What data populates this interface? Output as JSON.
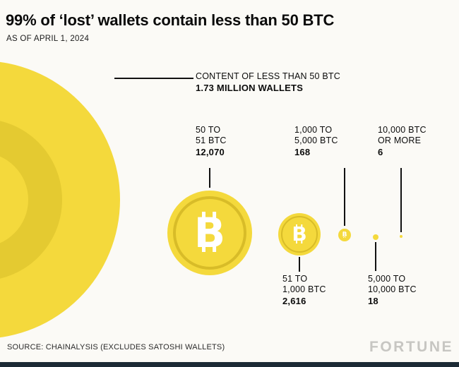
{
  "header": {
    "title": "99% of ‘lost’ wallets contain less than 50 BTC",
    "subtitle": "AS OF APRIL 1, 2024"
  },
  "symbols": {
    "bitcoin_letter": "B"
  },
  "colors": {
    "coin_yellow": "#F4D93C",
    "coin_band": "#E4CA31",
    "coin_ring": "#D8BC28",
    "footer_bar": "#1C2A35",
    "logo_gray": "#C7C6C2",
    "background": "#FBFAF6",
    "text": "#0D0D0D"
  },
  "labels": {
    "lt50": {
      "line1": "CONTENT OF LESS THAN 50 BTC",
      "value": "1.73 MILLION WALLETS"
    },
    "b50_51": {
      "line1": "50 TO",
      "line2": "51 BTC",
      "value": "12,070"
    },
    "b51_1000": {
      "line1": "51 TO",
      "line2": "1,000 BTC",
      "value": "2,616"
    },
    "b1000_5000": {
      "line1": "1,000 TO",
      "line2": "5,000 BTC",
      "value": "168"
    },
    "b5000_10000": {
      "line1": "5,000 TO",
      "line2": "10,000 BTC",
      "value": "18"
    },
    "b10000_plus": {
      "line1": "10,000 BTC",
      "line2": "OR MORE",
      "value": "6"
    }
  },
  "footer": {
    "source": "SOURCE: CHAINALYSIS (EXCLUDES SATOSHI WALLETS)",
    "logo": "FORTUNE"
  },
  "chart_data": {
    "type": "scatter",
    "variant": "proportional-area-circles",
    "title": "99% of ‘lost’ wallets contain less than 50 BTC",
    "subtitle": "AS OF APRIL 1, 2024",
    "categories": [
      "CONTENT OF LESS THAN 50 BTC",
      "50 TO 51 BTC",
      "51 TO 1,000 BTC",
      "1,000 TO 5,000 BTC",
      "5,000 TO 10,000 BTC",
      "10,000 BTC OR MORE"
    ],
    "values": [
      1730000,
      12070,
      2616,
      168,
      18,
      6
    ],
    "value_labels": [
      "1.73 MILLION WALLETS",
      "12,070",
      "2,616",
      "168",
      "18",
      "6"
    ],
    "unit": "wallets",
    "legend": "none",
    "grid": false,
    "source": "SOURCE: CHAINALYSIS (EXCLUDES SATOSHI WALLETS)"
  }
}
